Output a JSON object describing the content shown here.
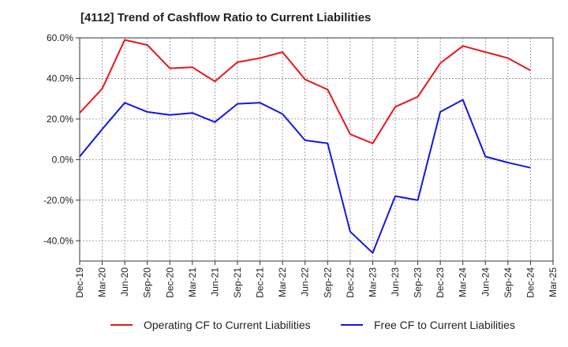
{
  "chart_data": {
    "type": "line",
    "title": "[4112]  Trend of Cashflow Ratio to Current Liabilities",
    "xlabel": "",
    "ylabel": "",
    "ylim": [
      -50,
      60
    ],
    "yticks": [
      -40,
      -20,
      0,
      20,
      40,
      60
    ],
    "y_tick_labels": [
      "-40.0%",
      "-20.0%",
      "0.0%",
      "20.0%",
      "40.0%",
      "60.0%"
    ],
    "categories": [
      "Dec-19",
      "Mar-20",
      "Jun-20",
      "Sep-20",
      "Dec-20",
      "Mar-21",
      "Jun-21",
      "Sep-21",
      "Dec-21",
      "Mar-22",
      "Jun-22",
      "Sep-22",
      "Dec-22",
      "Mar-23",
      "Jun-23",
      "Sep-23",
      "Dec-23",
      "Mar-24",
      "Jun-24",
      "Sep-24",
      "Dec-24",
      "Mar-25"
    ],
    "grid": true,
    "legend_position": "bottom",
    "series": [
      {
        "name": "Operating CF to Current Liabilities",
        "color": "#e8161b",
        "values": [
          23.0,
          35.0,
          59.0,
          56.5,
          45.0,
          45.5,
          38.5,
          48.0,
          50.0,
          53.0,
          39.5,
          34.5,
          12.5,
          8.0,
          26.0,
          31.0,
          47.5,
          56.0,
          53.0,
          50.0,
          44.0,
          null
        ]
      },
      {
        "name": "Free CF to Current Liabilities",
        "color": "#1515e6",
        "values": [
          1.5,
          15.0,
          28.0,
          23.5,
          22.0,
          23.0,
          18.5,
          27.5,
          28.0,
          22.5,
          9.5,
          8.0,
          -35.5,
          -46.0,
          -18.0,
          -20.0,
          23.5,
          29.5,
          1.5,
          -1.5,
          -4.0,
          null
        ]
      }
    ]
  }
}
